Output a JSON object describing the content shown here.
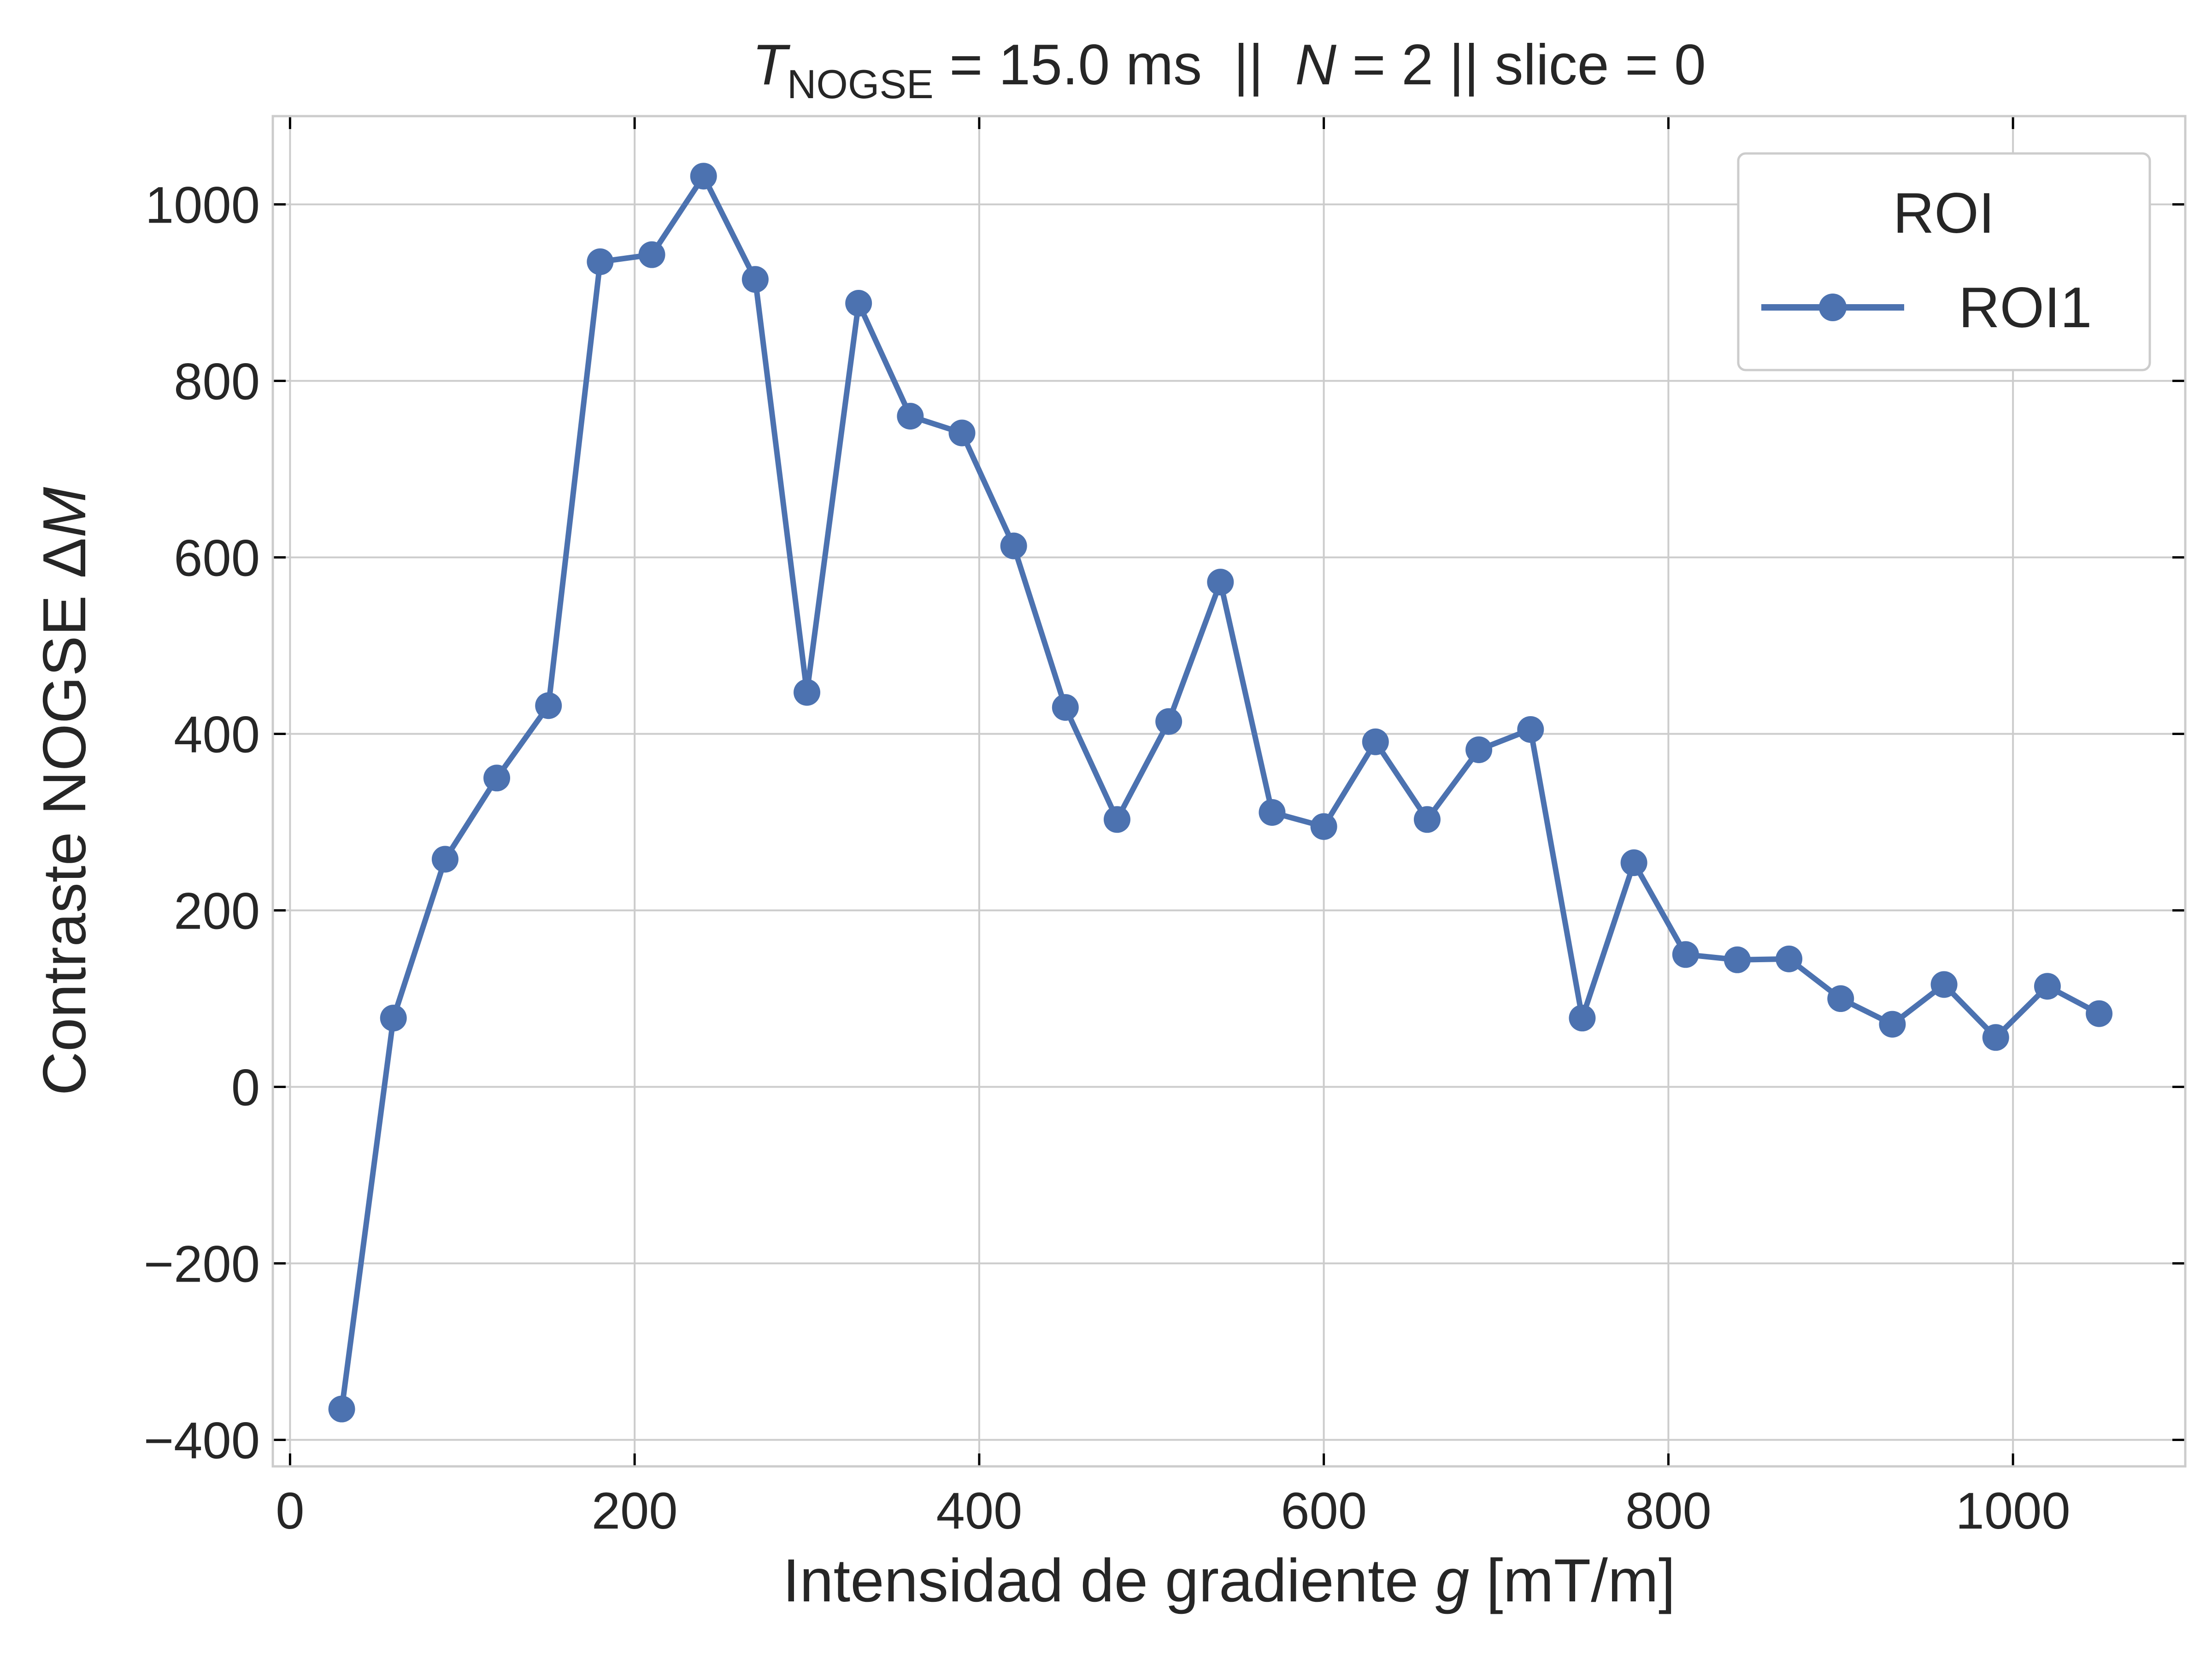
{
  "chart_data": {
    "type": "line",
    "title": {
      "prefix": "T",
      "subscript": "NOGSE",
      "middle": " = 15.0 ms  ||  ",
      "n_symbol": "N",
      "suffix": " = 2 || slice = 0"
    },
    "xlabel": {
      "text": "Intensidad de gradiente ",
      "symbol": "g",
      "unit": " [mT/m]"
    },
    "ylabel": {
      "text": "Contraste NOGSE Δ",
      "symbol": "M"
    },
    "xlim": [
      -10,
      1100
    ],
    "ylim": [
      -430,
      1100
    ],
    "xticks": [
      0,
      200,
      400,
      600,
      800,
      1000
    ],
    "xtick_labels": [
      "0",
      "200",
      "400",
      "600",
      "800",
      "1000"
    ],
    "yticks": [
      -400,
      -200,
      0,
      200,
      400,
      600,
      800,
      1000
    ],
    "ytick_labels": [
      "−400",
      "−200",
      "0",
      "200",
      "400",
      "600",
      "800",
      "1000"
    ],
    "grid": true,
    "legend": {
      "title": "ROI",
      "position": "top-right"
    },
    "series": [
      {
        "name": "ROI1",
        "color": "#4c72b0",
        "marker": "circle",
        "x": [
          30,
          60,
          90,
          120,
          150,
          180,
          210,
          240,
          270,
          300,
          330,
          360,
          390,
          420,
          450,
          480,
          510,
          540,
          570,
          600,
          630,
          660,
          690,
          720,
          750,
          780,
          810,
          840,
          870,
          900,
          930,
          960,
          990,
          1020,
          1050
        ],
        "y": [
          -365,
          78,
          258,
          350,
          432,
          935,
          943,
          1032,
          915,
          447,
          888,
          760,
          741,
          613,
          430,
          303,
          414,
          572,
          311,
          295,
          391,
          303,
          382,
          405,
          78,
          254,
          150,
          144,
          145,
          100,
          71,
          116,
          56,
          114,
          83
        ]
      }
    ]
  }
}
